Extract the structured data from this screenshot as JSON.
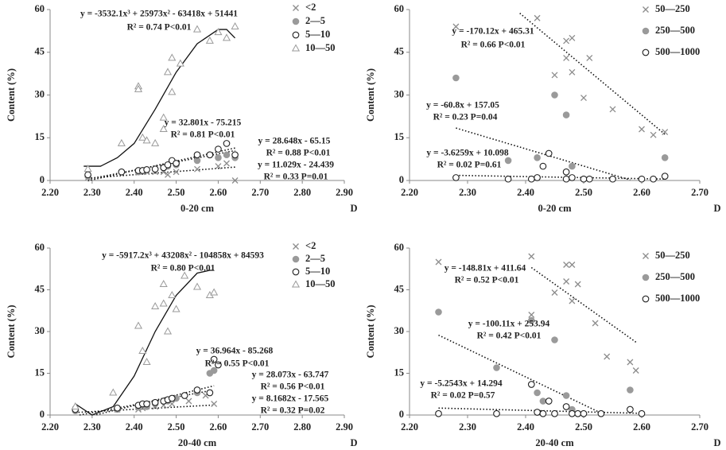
{
  "chart_data": [
    {
      "type": "scatter",
      "x_label": "0-20 cm",
      "x_symbol": "D",
      "y_label": "Content (%)",
      "xlim": [
        2.2,
        2.9
      ],
      "xticks": [
        {
          "value": 2.2,
          "label": "2.20"
        },
        {
          "value": 2.3,
          "label": "2.30"
        },
        {
          "value": 2.4,
          "label": "2.40"
        },
        {
          "value": 2.5,
          "label": "2.50"
        },
        {
          "value": 2.6,
          "label": "2.60"
        },
        {
          "value": 2.7,
          "label": "2.70"
        },
        {
          "value": 2.8,
          "label": "2.80"
        },
        {
          "value": 2.9,
          "label": "2.90"
        }
      ],
      "ylim": [
        0,
        60
      ],
      "yticks": [
        0,
        15,
        30,
        45,
        60
      ],
      "series": [
        {
          "name": "<2",
          "color": "#8c8c8c",
          "marker": "x",
          "x": [
            2.29,
            2.41,
            2.43,
            2.45,
            2.47,
            2.48,
            2.5,
            2.55,
            2.6,
            2.62,
            2.64
          ],
          "y": [
            1,
            3,
            3,
            3,
            3,
            2,
            3,
            4,
            5,
            6,
            0
          ]
        },
        {
          "name": "2—5",
          "color": "#9a9a9a",
          "marker": "filled-circle",
          "x": [
            2.29,
            2.41,
            2.42,
            2.45,
            2.47,
            2.48,
            2.5,
            2.55,
            2.6,
            2.62,
            2.64
          ],
          "y": [
            1.5,
            3,
            3.5,
            4,
            4.5,
            5,
            5.5,
            7,
            8,
            9,
            8
          ]
        },
        {
          "name": "5—10",
          "color": "#222222",
          "marker": "circle",
          "x": [
            2.29,
            2.37,
            2.41,
            2.42,
            2.43,
            2.45,
            2.47,
            2.48,
            2.49,
            2.5,
            2.55,
            2.58,
            2.6,
            2.62,
            2.64
          ],
          "y": [
            2,
            3,
            3.5,
            3.5,
            3.8,
            4,
            4.5,
            5.5,
            7,
            6,
            9,
            9,
            11,
            13,
            9
          ]
        },
        {
          "name": "10—50",
          "color": "#9a9a9a",
          "marker": "triangle",
          "x": [
            2.29,
            2.37,
            2.41,
            2.41,
            2.42,
            2.43,
            2.45,
            2.47,
            2.47,
            2.48,
            2.49,
            2.49,
            2.51,
            2.55,
            2.58,
            2.6,
            2.62,
            2.64
          ],
          "y": [
            4,
            13,
            33,
            32,
            15,
            14,
            13,
            22,
            18,
            38,
            31,
            43,
            41,
            53,
            49,
            52,
            50,
            54
          ]
        }
      ],
      "fits": [
        {
          "style": "solid",
          "x": [
            2.28,
            2.32,
            2.36,
            2.4,
            2.45,
            2.5,
            2.55,
            2.6,
            2.62,
            2.64
          ],
          "y": [
            5,
            5,
            8,
            13,
            25,
            38,
            48,
            53,
            53,
            50
          ]
        },
        {
          "style": "dotted",
          "x": [
            2.29,
            2.64
          ],
          "y": [
            -0.1,
            11.4
          ]
        },
        {
          "style": "dotted",
          "x": [
            2.29,
            2.64
          ],
          "y": [
            0.45,
            10.5
          ]
        },
        {
          "style": "dotted",
          "x": [
            2.29,
            2.64
          ],
          "y": [
            0.8,
            4.7
          ]
        }
      ],
      "annotations": [
        "y = -3532.1x³ + 25973x² - 63418x + 51441",
        "R² = 0.74  P<0.01",
        "y = 32.801x - 75.215",
        "R² = 0.81  P<0.01",
        "y = 28.648x - 65.15",
        "R² = 0.88  P<0.01",
        "y = 11.029x - 24.439",
        "R² = 0.33  P=0.01"
      ]
    },
    {
      "type": "scatter",
      "x_label": "0-20 cm",
      "x_symbol": "D",
      "y_label": "Content (%)",
      "xlim": [
        2.2,
        2.7
      ],
      "xticks": [
        {
          "value": 2.2,
          "label": "2.20"
        },
        {
          "value": 2.3,
          "label": "2.30"
        },
        {
          "value": 2.4,
          "label": "2.40"
        },
        {
          "value": 2.5,
          "label": "2.50"
        },
        {
          "value": 2.6,
          "label": "2.60"
        },
        {
          "value": 2.7,
          "label": "2.70"
        }
      ],
      "ylim": [
        0,
        60
      ],
      "yticks": [
        0,
        15,
        30,
        45,
        60
      ],
      "series": [
        {
          "name": "50—250",
          "color": "#8c8c8c",
          "marker": "x",
          "x": [
            2.28,
            2.42,
            2.45,
            2.47,
            2.47,
            2.48,
            2.48,
            2.5,
            2.51,
            2.55,
            2.6,
            2.62,
            2.64
          ],
          "y": [
            54,
            57,
            37,
            49,
            43,
            50,
            38,
            29,
            43,
            25,
            18,
            16,
            17
          ]
        },
        {
          "name": "250—500",
          "color": "#9a9a9a",
          "marker": "filled-circle",
          "x": [
            2.28,
            2.37,
            2.42,
            2.42,
            2.45,
            2.47,
            2.48,
            2.5,
            2.64
          ],
          "y": [
            36,
            7,
            1,
            8,
            30,
            23,
            5,
            0.5,
            8
          ]
        },
        {
          "name": "500—1000",
          "color": "#222222",
          "marker": "circle",
          "x": [
            2.28,
            2.37,
            2.41,
            2.42,
            2.43,
            2.44,
            2.47,
            2.47,
            2.48,
            2.5,
            2.51,
            2.55,
            2.6,
            2.62,
            2.64
          ],
          "y": [
            1,
            0.5,
            0.5,
            1,
            5,
            9.5,
            3,
            0.5,
            1,
            0.5,
            0.5,
            0.5,
            0.5,
            0.5,
            1.5
          ]
        }
      ],
      "fits": [
        {
          "style": "dotted",
          "x": [
            2.39,
            2.64
          ],
          "y": [
            58.7,
            16.2
          ]
        },
        {
          "style": "dotted",
          "x": [
            2.28,
            2.58
          ],
          "y": [
            18.4,
            0.2
          ]
        },
        {
          "style": "dotted",
          "x": [
            2.28,
            2.64
          ],
          "y": [
            1.8,
            0.5
          ]
        }
      ],
      "annotations": [
        "y = -170.12x + 465.31",
        "R² = 0.66  P<0.01",
        "y = -60.8x + 157.05",
        "R² = 0.23  P=0.04",
        "y = -3.6259x + 10.098",
        "R² = 0.02  P=0.61"
      ]
    },
    {
      "type": "scatter",
      "x_label": "20-40 cm",
      "x_symbol": "D",
      "y_label": "Content (%)",
      "xlim": [
        2.2,
        2.9
      ],
      "xticks": [
        {
          "value": 2.2,
          "label": "2.20"
        },
        {
          "value": 2.3,
          "label": "2.30"
        },
        {
          "value": 2.4,
          "label": "2.40"
        },
        {
          "value": 2.5,
          "label": "2.50"
        },
        {
          "value": 2.6,
          "label": "2.60"
        },
        {
          "value": 2.7,
          "label": "2.70"
        },
        {
          "value": 2.8,
          "label": "2.80"
        },
        {
          "value": 2.9,
          "label": "2.90"
        }
      ],
      "ylim": [
        0,
        60
      ],
      "yticks": [
        0,
        15,
        30,
        45,
        60
      ],
      "series": [
        {
          "name": "<2",
          "color": "#8c8c8c",
          "marker": "x",
          "x": [
            2.26,
            2.36,
            2.41,
            2.42,
            2.45,
            2.47,
            2.49,
            2.53,
            2.57,
            2.59
          ],
          "y": [
            2,
            2,
            2,
            2.5,
            3,
            3.5,
            4,
            5,
            7,
            4
          ]
        },
        {
          "name": "2—5",
          "color": "#9a9a9a",
          "marker": "filled-circle",
          "x": [
            2.26,
            2.36,
            2.41,
            2.43,
            2.45,
            2.48,
            2.5,
            2.55,
            2.58,
            2.59
          ],
          "y": [
            1.5,
            2,
            3,
            3,
            4,
            5,
            6,
            8,
            15,
            16
          ]
        },
        {
          "name": "5—10",
          "color": "#222222",
          "marker": "circle",
          "x": [
            2.26,
            2.36,
            2.41,
            2.42,
            2.43,
            2.45,
            2.47,
            2.48,
            2.49,
            2.52,
            2.55,
            2.58,
            2.59,
            2.6
          ],
          "y": [
            2,
            2.5,
            3.5,
            4,
            4,
            4.5,
            5,
            5.5,
            6,
            7,
            9,
            8,
            20,
            18
          ]
        },
        {
          "name": "10—50",
          "color": "#9a9a9a",
          "marker": "triangle",
          "x": [
            2.26,
            2.35,
            2.41,
            2.42,
            2.43,
            2.45,
            2.47,
            2.47,
            2.48,
            2.49,
            2.5,
            2.52,
            2.55,
            2.58,
            2.59
          ],
          "y": [
            3,
            8,
            32,
            23,
            19,
            39,
            40,
            47,
            30,
            43,
            38,
            50,
            46,
            43,
            44
          ]
        }
      ],
      "fits": [
        {
          "style": "solid",
          "x": [
            2.26,
            2.3,
            2.35,
            2.4,
            2.45,
            2.5,
            2.55,
            2.58,
            2.59
          ],
          "y": [
            4,
            0,
            3,
            14,
            30,
            43,
            51,
            52,
            52
          ]
        },
        {
          "style": "dotted",
          "x": [
            2.31,
            2.59
          ],
          "y": [
            0.1,
            10.5
          ]
        },
        {
          "style": "dotted",
          "x": [
            2.27,
            2.59
          ],
          "y": [
            0,
            9
          ]
        },
        {
          "style": "dotted",
          "x": [
            2.26,
            2.59
          ],
          "y": [
            0.9,
            3.6
          ]
        }
      ],
      "annotations": [
        "y = -5917.2x³ + 43208x² - 104858x + 84593",
        "R² = 0.80  P<0.01",
        "y = 36.964x - 85.268",
        "R² = 0.55  P<0.01",
        "y = 28.073x - 63.747",
        "R² = 0.56  P<0.01",
        "y = 8.1682x - 17.565",
        "R² = 0.32  P=0.02"
      ]
    },
    {
      "type": "scatter",
      "x_label": "20-40 cm",
      "x_symbol": "D",
      "y_label": "Content (%)",
      "xlim": [
        2.2,
        2.7
      ],
      "xticks": [
        {
          "value": 2.2,
          "label": "2.20"
        },
        {
          "value": 2.3,
          "label": "2.30"
        },
        {
          "value": 2.4,
          "label": "2.40"
        },
        {
          "value": 2.5,
          "label": "2.50"
        },
        {
          "value": 2.6,
          "label": "2.60"
        },
        {
          "value": 2.7,
          "label": "2.70"
        }
      ],
      "ylim": [
        0,
        60
      ],
      "yticks": [
        0,
        15,
        30,
        45,
        60
      ],
      "series": [
        {
          "name": "50—250",
          "color": "#8c8c8c",
          "marker": "x",
          "x": [
            2.25,
            2.41,
            2.41,
            2.45,
            2.47,
            2.47,
            2.48,
            2.48,
            2.49,
            2.52,
            2.54,
            2.58,
            2.59
          ],
          "y": [
            55,
            57,
            36,
            44,
            54,
            48,
            54,
            41,
            47,
            33,
            21,
            19,
            16
          ]
        },
        {
          "name": "250—500",
          "color": "#9a9a9a",
          "marker": "filled-circle",
          "x": [
            2.25,
            2.35,
            2.41,
            2.42,
            2.43,
            2.45,
            2.47,
            2.48,
            2.49,
            2.58
          ],
          "y": [
            37,
            17,
            34,
            8,
            5,
            27,
            7,
            2,
            0.5,
            9
          ]
        },
        {
          "name": "500—1000",
          "color": "#222222",
          "marker": "circle",
          "x": [
            2.25,
            2.35,
            2.41,
            2.42,
            2.43,
            2.44,
            2.45,
            2.47,
            2.48,
            2.49,
            2.5,
            2.53,
            2.58,
            2.6
          ],
          "y": [
            0.5,
            0.5,
            11,
            1,
            0.5,
            5,
            0.5,
            3,
            0.5,
            0.5,
            0.5,
            0.5,
            2,
            0.5
          ]
        }
      ],
      "fits": [
        {
          "style": "dotted",
          "x": [
            2.41,
            2.59
          ],
          "y": [
            53,
            26.2
          ]
        },
        {
          "style": "dotted",
          "x": [
            2.25,
            2.53
          ],
          "y": [
            28.7,
            0.7
          ]
        },
        {
          "style": "dotted",
          "x": [
            2.25,
            2.6
          ],
          "y": [
            2.5,
            0.6
          ]
        }
      ],
      "annotations": [
        "y = -148.81x + 411.64",
        "R² = 0.52  P<0.01",
        "y = -100.11x + 253.94",
        "R² = 0.42  P<0.01",
        "y = -5.2543x + 14.294",
        "R² = 0.02  P=0.57"
      ]
    }
  ]
}
